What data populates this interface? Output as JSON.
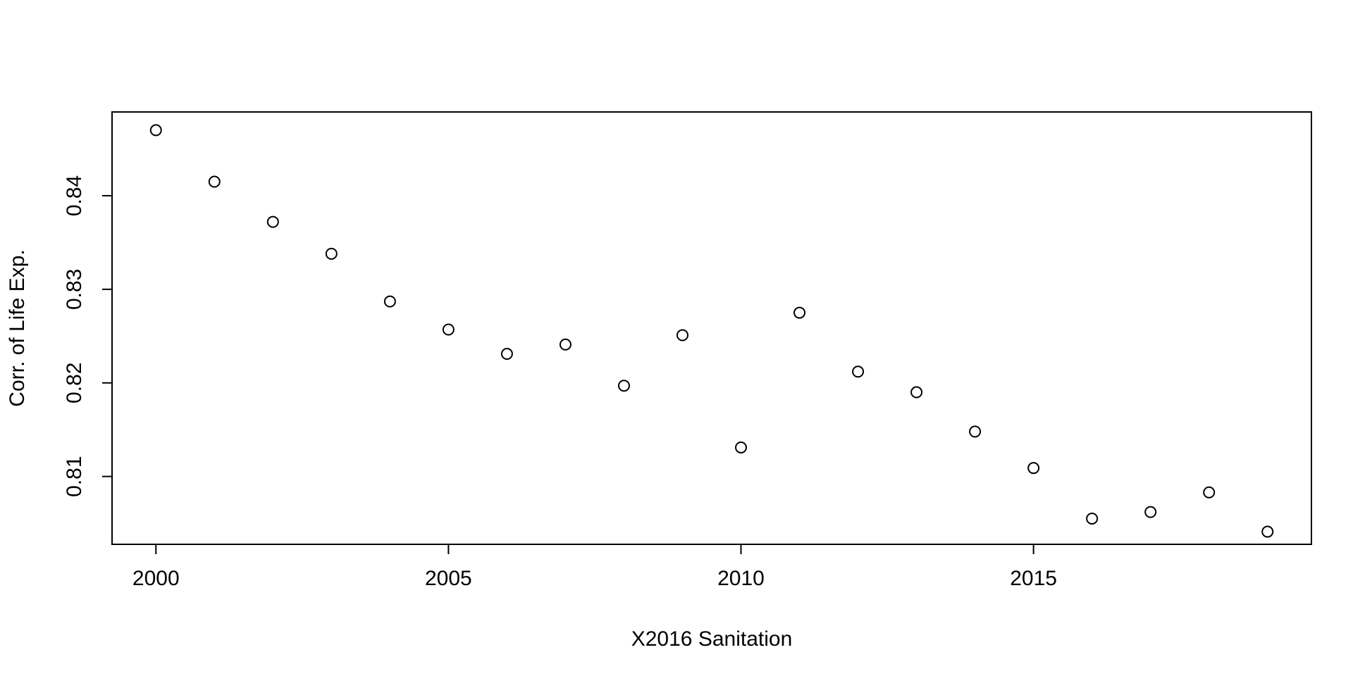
{
  "chart_data": {
    "type": "scatter",
    "title": "",
    "xlabel": "X2016 Sanitation",
    "ylabel": "Corr. of Life Exp.",
    "xlim": [
      1999.25,
      2019.75
    ],
    "ylim": [
      0.80275,
      0.84895
    ],
    "x_ticks": [
      2000,
      2005,
      2010,
      2015
    ],
    "y_ticks": [
      0.81,
      0.82,
      0.83,
      0.84
    ],
    "grid": false,
    "legend": "none",
    "marker": "open-circle",
    "points": [
      {
        "x": 2000,
        "y": 0.847
      },
      {
        "x": 2001,
        "y": 0.8415
      },
      {
        "x": 2002,
        "y": 0.8372
      },
      {
        "x": 2003,
        "y": 0.8338
      },
      {
        "x": 2004,
        "y": 0.8287
      },
      {
        "x": 2005,
        "y": 0.8257
      },
      {
        "x": 2006,
        "y": 0.8231
      },
      {
        "x": 2007,
        "y": 0.8241
      },
      {
        "x": 2008,
        "y": 0.8197
      },
      {
        "x": 2009,
        "y": 0.8251
      },
      {
        "x": 2010,
        "y": 0.8131
      },
      {
        "x": 2011,
        "y": 0.8275
      },
      {
        "x": 2012,
        "y": 0.8212
      },
      {
        "x": 2013,
        "y": 0.819
      },
      {
        "x": 2014,
        "y": 0.8148
      },
      {
        "x": 2015,
        "y": 0.8109
      },
      {
        "x": 2016,
        "y": 0.8055
      },
      {
        "x": 2017,
        "y": 0.8062
      },
      {
        "x": 2018,
        "y": 0.8083
      },
      {
        "x": 2019,
        "y": 0.8041
      }
    ]
  }
}
